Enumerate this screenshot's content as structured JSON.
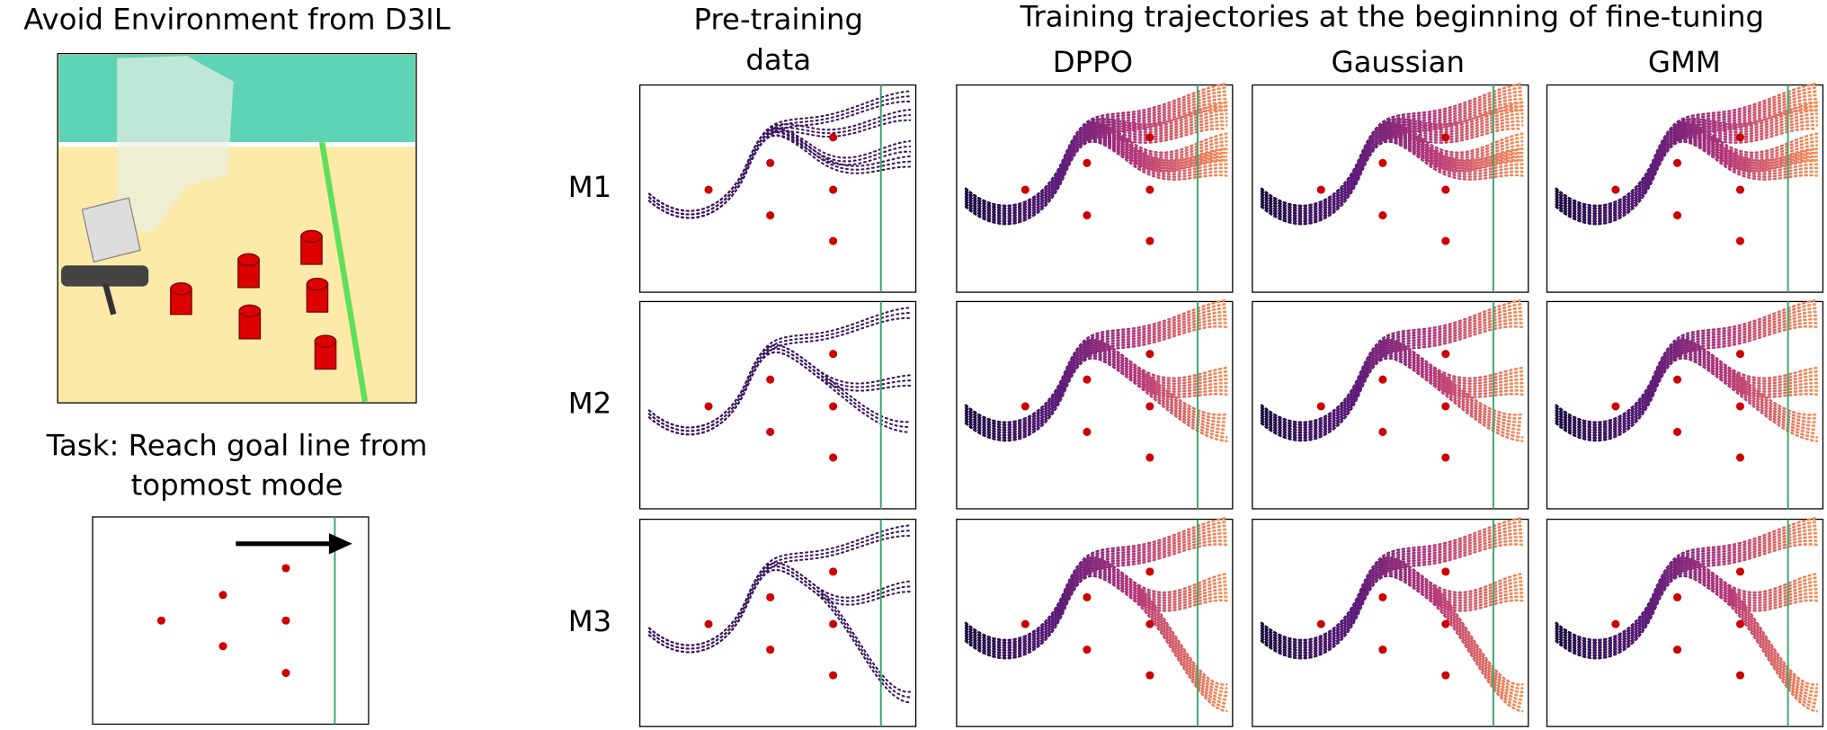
{
  "left": {
    "title": "Avoid Environment from D3IL",
    "task_lines": [
      "Task: Reach goal line from",
      "topmost mode"
    ]
  },
  "header": {
    "title": "Training trajectories at the beginning of fine-tuning",
    "columns": [
      {
        "lines": [
          "Pre-training",
          "data"
        ]
      },
      {
        "lines": [
          "DPPO"
        ]
      },
      {
        "lines": [
          "Gaussian"
        ]
      },
      {
        "lines": [
          "GMM"
        ]
      }
    ]
  },
  "rows": [
    "M1",
    "M2",
    "M3"
  ]
}
